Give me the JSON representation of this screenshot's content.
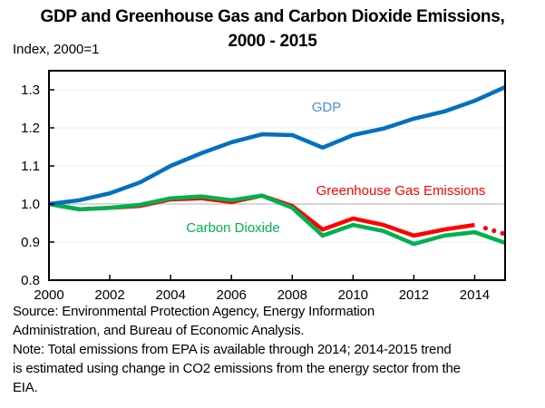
{
  "chart_data": {
    "type": "line",
    "title": "GDP and Greenhouse Gas and Carbon Dioxide Emissions,",
    "title_line2": "2000 - 2015",
    "ylabel": "Index, 2000=1",
    "xlabel": "",
    "xlim": [
      2000,
      2015
    ],
    "ylim": [
      0.8,
      1.3
    ],
    "x_ticks": [
      2000,
      2002,
      2004,
      2006,
      2008,
      2010,
      2012,
      2014
    ],
    "y_ticks": [
      "0.8",
      "0.9",
      "1.0",
      "1.1",
      "1.2",
      "1.3"
    ],
    "grid": true,
    "reference_line": 1.0,
    "x": [
      2000,
      2001,
      2002,
      2003,
      2004,
      2005,
      2006,
      2007,
      2008,
      2009,
      2010,
      2011,
      2012,
      2013,
      2014,
      2015
    ],
    "series": [
      {
        "name": "GDP",
        "color": "#0070c0",
        "label_color": "#4a90d0",
        "values": [
          1.0,
          1.01,
          1.028,
          1.057,
          1.1,
          1.133,
          1.162,
          1.183,
          1.181,
          1.148,
          1.181,
          1.198,
          1.224,
          1.243,
          1.271,
          1.307
        ]
      },
      {
        "name": "Greenhouse Gas Emissions",
        "color": "#ff0000",
        "label_color": "#ff0000",
        "values": [
          1.0,
          0.986,
          0.99,
          0.995,
          1.012,
          1.015,
          1.005,
          1.022,
          0.995,
          0.933,
          0.962,
          0.945,
          0.917,
          0.933,
          0.945,
          0.921
        ],
        "estimated_from": 2014
      },
      {
        "name": "Carbon Dioxide",
        "color": "#00b050",
        "label_color": "#00b050",
        "values": [
          1.0,
          0.986,
          0.99,
          0.998,
          1.015,
          1.02,
          1.01,
          1.022,
          0.99,
          0.917,
          0.945,
          0.929,
          0.895,
          0.917,
          0.926,
          0.898
        ]
      }
    ],
    "annotations": [
      "GDP",
      "Greenhouse Gas Emissions",
      "Carbon Dioxide"
    ]
  },
  "notes": {
    "source_line1": "Source: Environmental Protection Agency, Energy Information",
    "source_line2": "Administration, and Bureau of Economic Analysis.",
    "note_line1": "Note: Total emissions from EPA is available through 2014; 2014-2015 trend",
    "note_line2": "is estimated using change in CO2 emissions from the energy sector from the",
    "note_line3": "EIA."
  }
}
